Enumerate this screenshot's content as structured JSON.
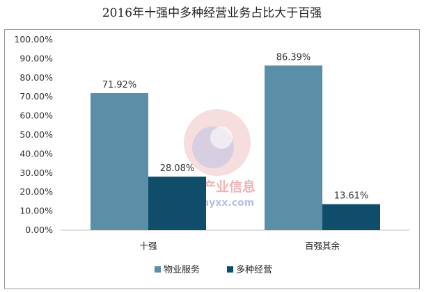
{
  "chart_data": {
    "type": "bar",
    "title": "2016年十强中多种经营业务占比大于百强",
    "categories": [
      "十强",
      "百强其余"
    ],
    "series": [
      {
        "name": "物业服务",
        "values": [
          71.92,
          86.39
        ],
        "color": "#5b8fa8"
      },
      {
        "name": "多种经营",
        "values": [
          28.08,
          13.61
        ],
        "color": "#0f4d6b"
      }
    ],
    "data_labels": [
      [
        "71.92%",
        "86.39%"
      ],
      [
        "28.08%",
        "13.61%"
      ]
    ],
    "ylim": [
      0,
      100
    ],
    "yticks": [
      "0.00%",
      "10.00%",
      "20.00%",
      "30.00%",
      "40.00%",
      "50.00%",
      "60.00%",
      "70.00%",
      "80.00%",
      "90.00%",
      "100.00%"
    ],
    "grid": false,
    "legend": "bottom"
  },
  "watermark": {
    "name": "中国产业信息",
    "url": "www.chyxx.com"
  }
}
